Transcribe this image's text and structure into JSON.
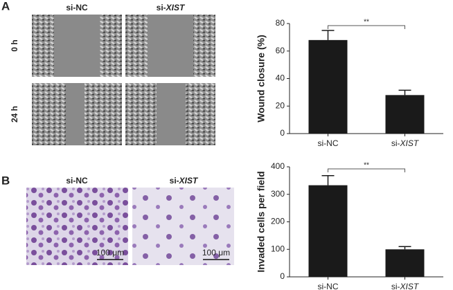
{
  "panel_labels": [
    "A",
    "B"
  ],
  "migration_images": {
    "columns": [
      "si-NC",
      "si-XIST"
    ],
    "rows": [
      "0 h",
      "24 h"
    ]
  },
  "invasion_images": {
    "columns": [
      "si-NC",
      "si-XIST"
    ],
    "scale_bar": "100 μm"
  },
  "chart_data": [
    {
      "type": "bar",
      "ylabel": "Wound closure (%)",
      "categories": [
        "si-NC",
        "si-XIST"
      ],
      "values": [
        68,
        28
      ],
      "errors": [
        7,
        3.5
      ],
      "color": "#1a1a1a",
      "ylim": [
        0,
        80
      ],
      "yticks": [
        0,
        20,
        40,
        60,
        80
      ],
      "significance": "**"
    },
    {
      "type": "bar",
      "ylabel": "Invaded cells per field",
      "categories": [
        "si-NC",
        "si-XIST"
      ],
      "values": [
        333,
        100
      ],
      "errors": [
        35,
        10
      ],
      "color": "#1a1a1a",
      "ylim": [
        0,
        400
      ],
      "yticks": [
        0,
        100,
        200,
        300,
        400
      ],
      "significance": "**"
    }
  ]
}
